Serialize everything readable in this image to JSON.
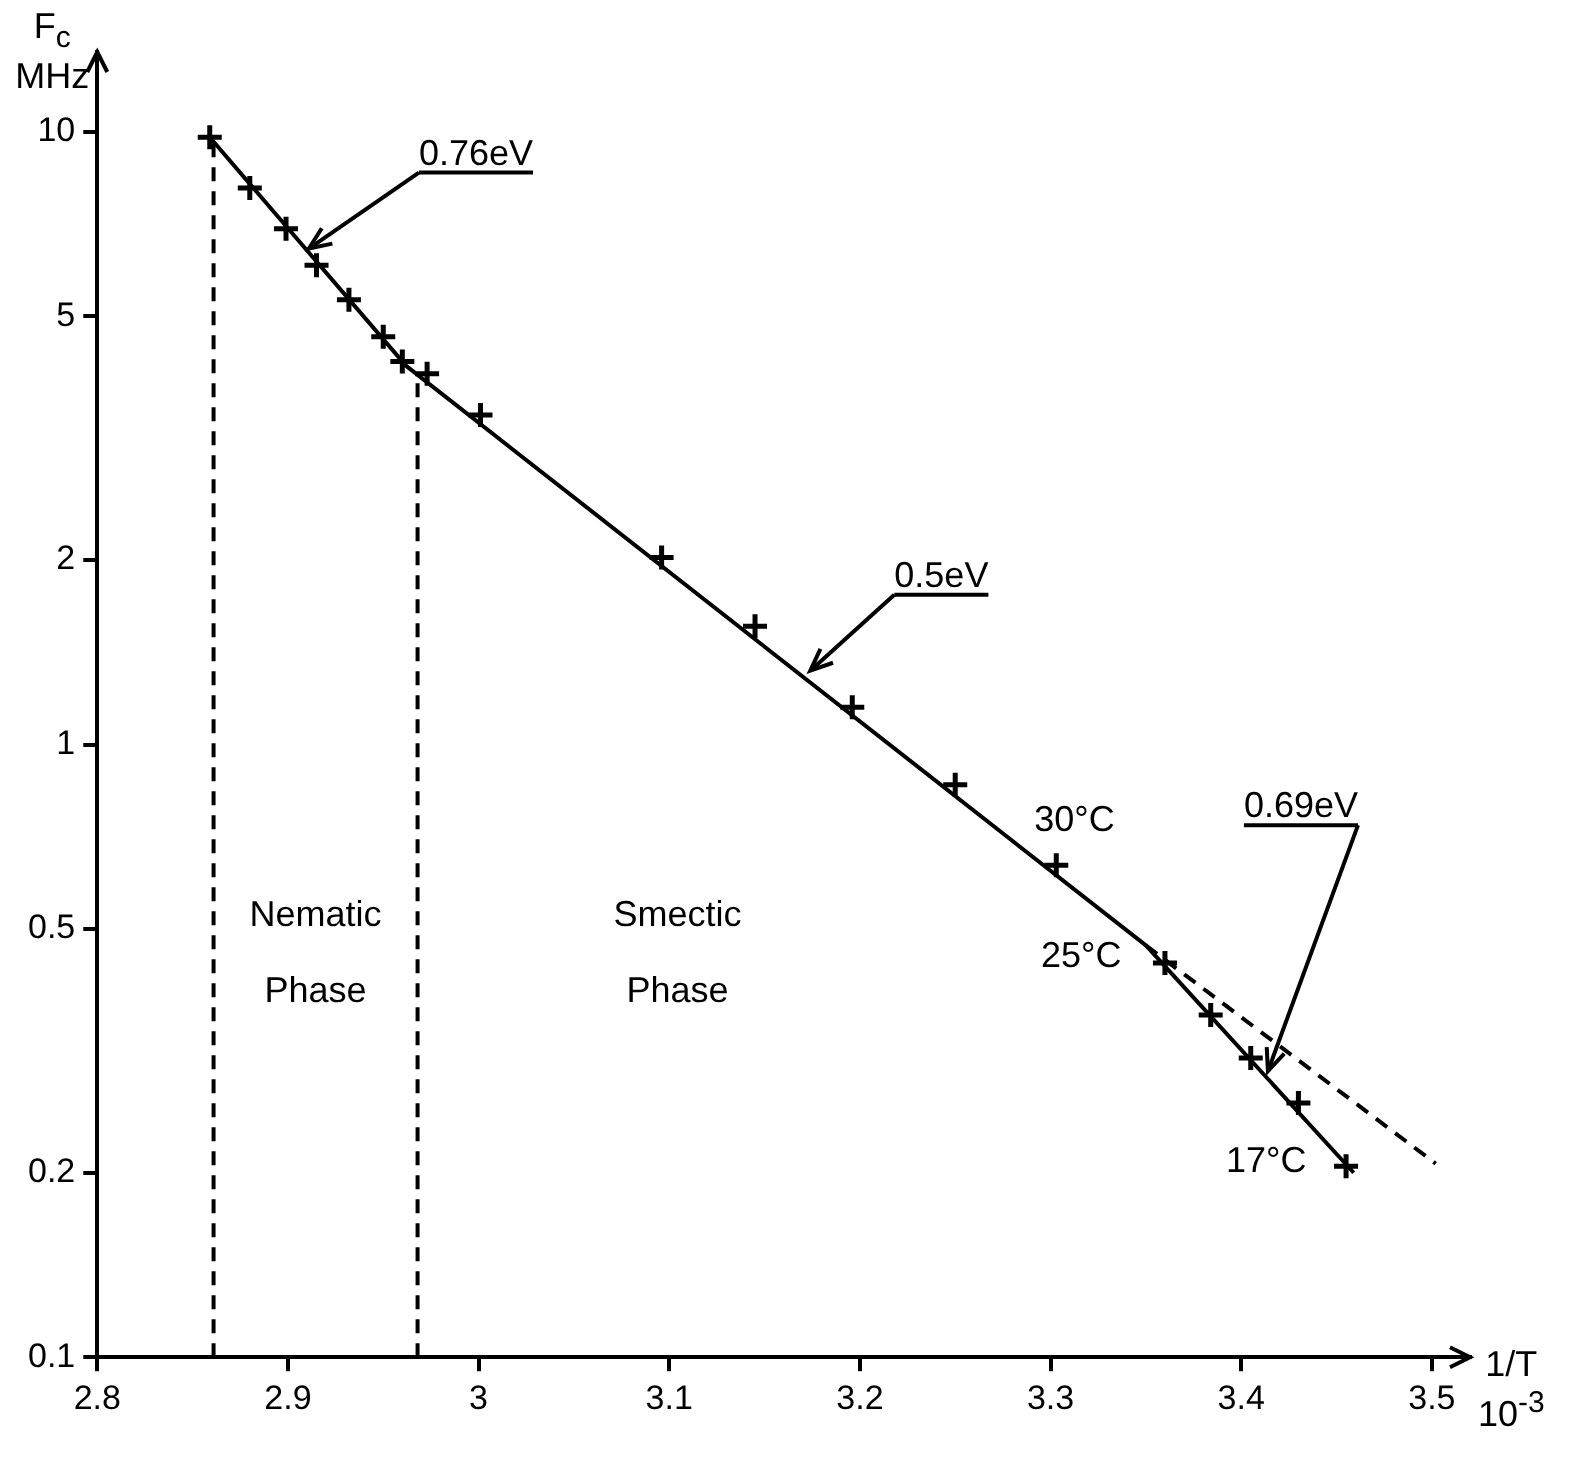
{
  "chart_data": {
    "type": "scatter",
    "ylabel": "F$_{c}$\nMHz",
    "xlabel": "1/T\n10$^{-3}$",
    "xlim": [
      2.8,
      3.52
    ],
    "xticks": [
      2.8,
      2.9,
      3,
      3.1,
      3.2,
      3.3,
      3.4,
      3.5
    ],
    "ylim": [
      0.1,
      13.5
    ],
    "yticks": [
      0.1,
      0.2,
      0.5,
      1,
      2,
      5,
      10
    ],
    "log": "y",
    "grid": false,
    "legend": false,
    "series": [
      {
        "type": "scatter",
        "color": "#000000",
        "marker": "cross",
        "x": [
          2.859,
          2.88,
          2.899,
          2.915,
          2.932,
          2.95,
          2.96,
          2.973,
          3.001,
          3.096,
          3.145,
          3.196,
          3.25,
          3.303,
          3.36,
          3.384,
          3.405,
          3.43,
          3.455
        ],
        "values": [
          9.8,
          8.1,
          6.95,
          6.06,
          5.32,
          4.63,
          4.22,
          4.03,
          3.45,
          2.02,
          1.56,
          1.15,
          0.86,
          0.635,
          0.44,
          0.362,
          0.308,
          0.26,
          0.205
        ]
      },
      {
        "type": "line",
        "color": "#000000",
        "marker": "none",
        "line_style": "solid",
        "x": [
          2.859,
          2.962,
          3.35,
          3.459
        ],
        "values": [
          9.8,
          4.15,
          0.47,
          0.2
        ]
      },
      {
        "type": "line",
        "color": "#000000",
        "marker": "none",
        "line_style": "dashed",
        "x": [
          3.35,
          3.502
        ],
        "values": [
          0.47,
          0.207
        ]
      }
    ],
    "ref_lines": [
      {
        "axis": "x",
        "value": 2.861,
        "color": "#000000",
        "line_style": "dashed"
      },
      {
        "axis": "x",
        "value": 2.968,
        "color": "#000000",
        "line_style": "dashed"
      }
    ],
    "annotations": [
      {
        "text": "0.76eV",
        "x": 2.911,
        "y": 6.45
      },
      {
        "text": "0.5eV",
        "x": 3.174,
        "y": 1.32
      },
      {
        "text": "0.69eV",
        "x": 3.414,
        "y": 0.293
      },
      {
        "text": "30°C",
        "x": 3.303,
        "y": 0.635
      },
      {
        "text": "25°C",
        "x": 3.36,
        "y": 0.44
      },
      {
        "text": "17°C",
        "x": 3.455,
        "y": 0.205
      },
      "Nematic\nPhase",
      "Smectic\nPhase"
    ]
  }
}
